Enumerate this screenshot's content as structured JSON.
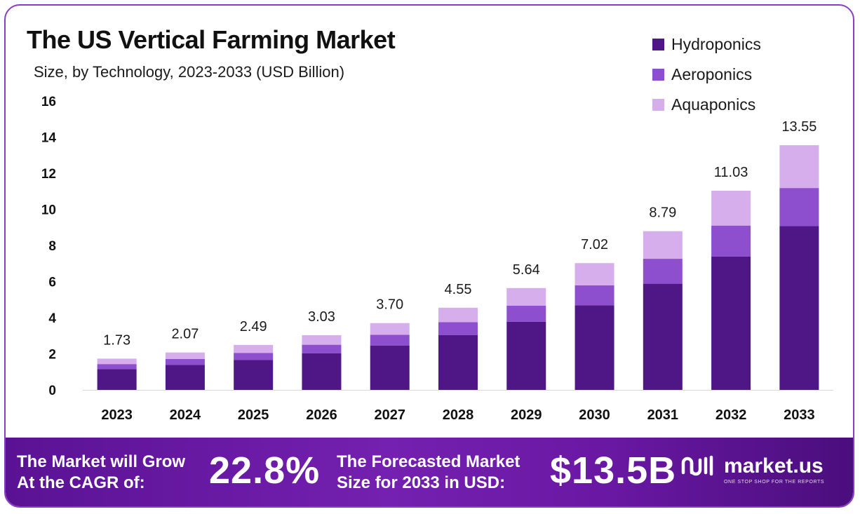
{
  "chart_data": {
    "type": "bar",
    "stacked": true,
    "title": "The US Vertical Farming Market",
    "subtitle": "Size, by Technology, 2023-2033 (USD Billion)",
    "categories": [
      "2023",
      "2024",
      "2025",
      "2026",
      "2027",
      "2028",
      "2029",
      "2030",
      "2031",
      "2032",
      "2033"
    ],
    "series": [
      {
        "name": "Hydroponics",
        "color": "#4f1686",
        "values": [
          1.15,
          1.38,
          1.65,
          2.02,
          2.46,
          3.03,
          3.77,
          4.69,
          5.88,
          7.38,
          9.07
        ]
      },
      {
        "name": "Aeroponics",
        "color": "#8e4fcf",
        "values": [
          0.28,
          0.33,
          0.4,
          0.48,
          0.59,
          0.72,
          0.89,
          1.1,
          1.38,
          1.72,
          2.11
        ]
      },
      {
        "name": "Aquaponics",
        "color": "#d5aeeb",
        "values": [
          0.3,
          0.36,
          0.44,
          0.53,
          0.65,
          0.8,
          0.98,
          1.23,
          1.53,
          1.93,
          2.37
        ]
      }
    ],
    "totals": [
      "1.73",
      "2.07",
      "2.49",
      "3.03",
      "3.70",
      "4.55",
      "5.64",
      "7.02",
      "8.79",
      "11.03",
      "13.55"
    ],
    "y_ticks": [
      "0",
      "2",
      "4",
      "6",
      "8",
      "10",
      "12",
      "14",
      "16"
    ],
    "ylim": [
      0,
      16
    ],
    "xlabel": "",
    "ylabel": "",
    "grid": false,
    "legend_position": "top-right"
  },
  "banner": {
    "cagr_label_line1": "The Market will Grow",
    "cagr_label_line2": "At the CAGR of:",
    "cagr_value": "22.8%",
    "forecast_label_line1": "The Forecasted Market",
    "forecast_label_line2": "Size for 2033 in USD:",
    "forecast_value": "$13.5B",
    "brand_name": "market.us",
    "brand_tagline": "ONE STOP SHOP FOR THE REPORTS"
  }
}
